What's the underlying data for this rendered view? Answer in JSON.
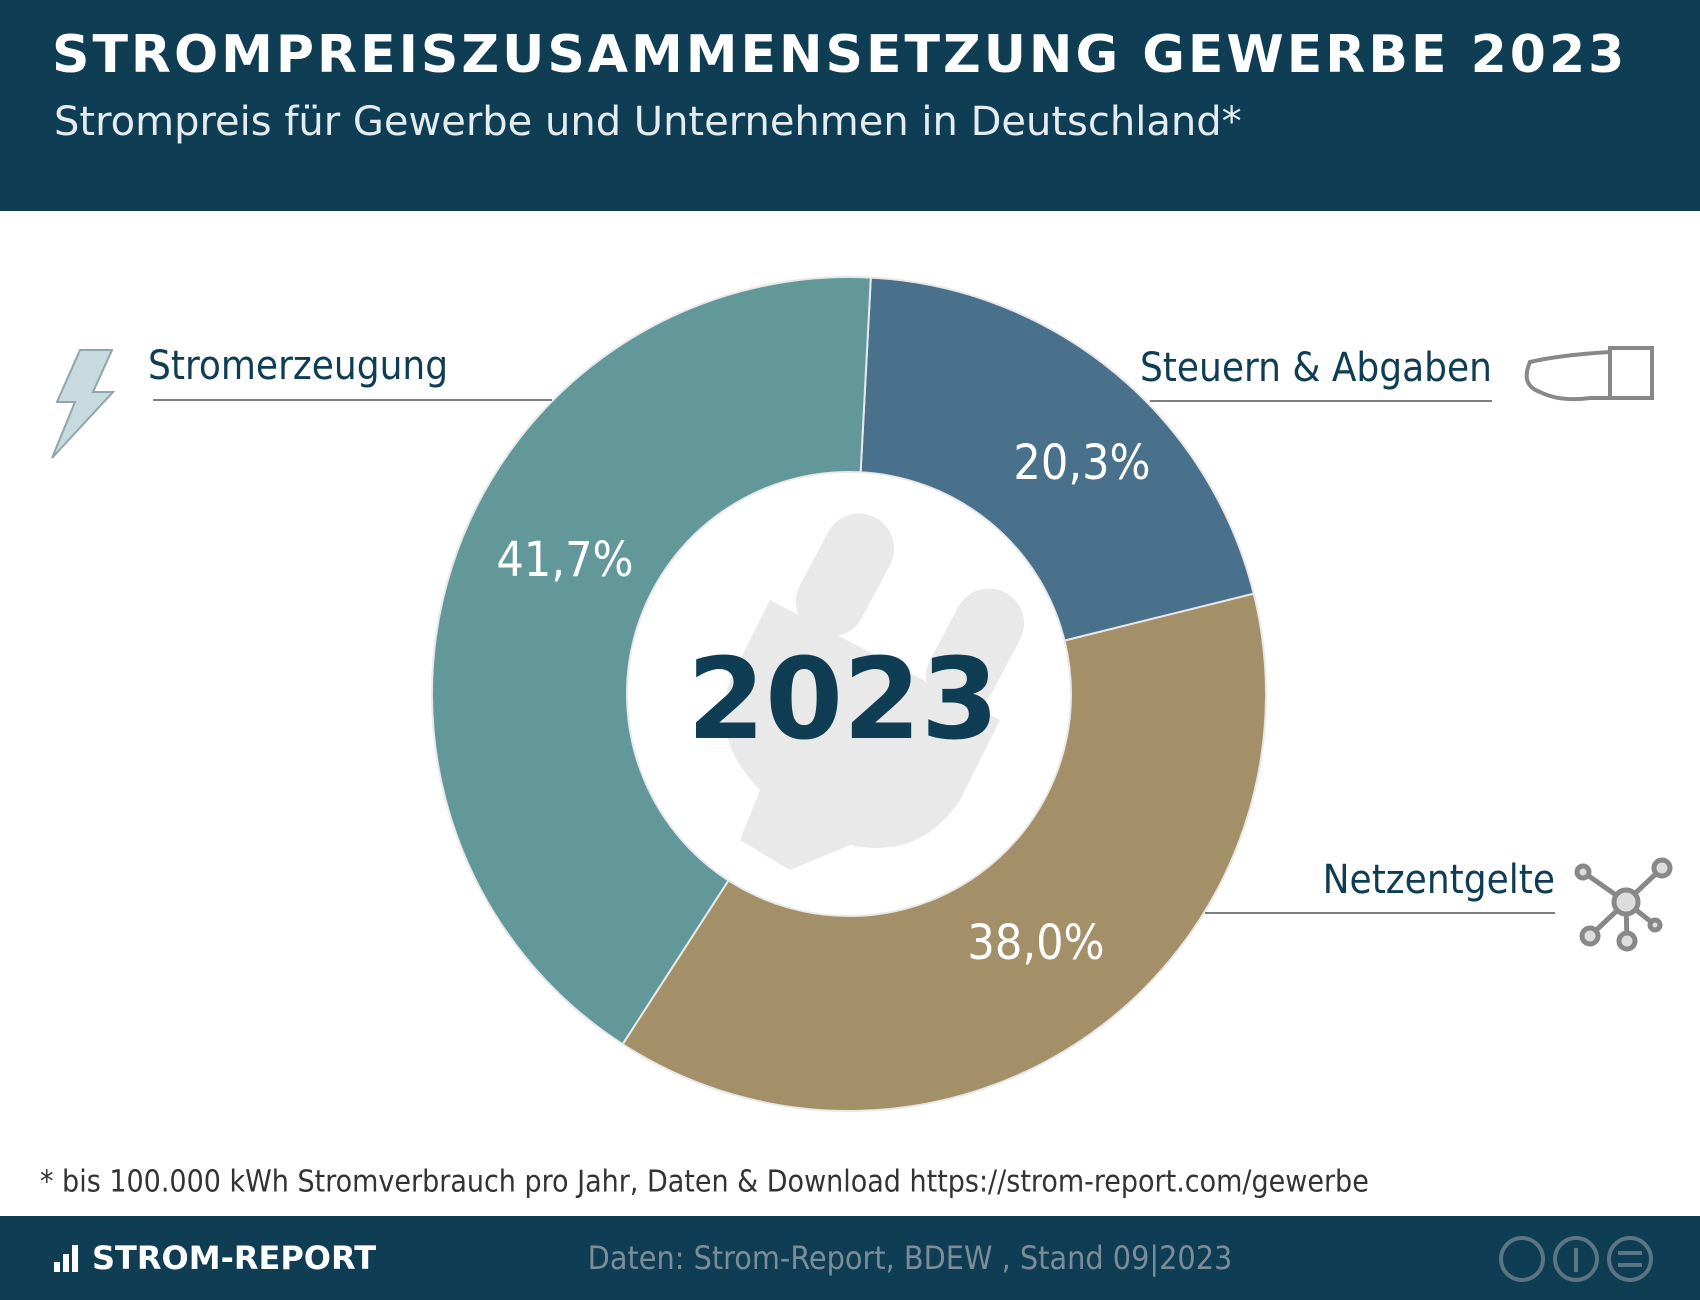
{
  "title": "STROMPREISZUSAMMENSETZUNG GEWERBE 2023",
  "subtitle": "Strompreis für Gewerbe und Unternehmen in Deutschland*",
  "chart_data": {
    "type": "pie",
    "center_label": "2023",
    "categories": [
      "Steuern & Abgaben",
      "Netzentgelte",
      "Stromerzeugung"
    ],
    "values": [
      20.3,
      38.0,
      41.7
    ],
    "value_labels": [
      "20,3%",
      "38,0%",
      "41,7%"
    ],
    "colors": [
      "#4a718b",
      "#a39069",
      "#62989a"
    ]
  },
  "footnote": "* bis 100.000 kWh Stromverbrauch pro Jahr, Daten & Download https://strom-report.com/gewerbe",
  "footer": {
    "brand": "STROM-REPORT",
    "source": "Daten: Strom-Report, BDEW , Stand 09|2023"
  }
}
